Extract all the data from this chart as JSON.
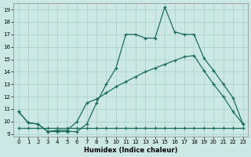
{
  "xlabel": "Humidex (Indice chaleur)",
  "bg_color": "#cce8e5",
  "grid_color": "#aacfcb",
  "line_color": "#1a6b5e",
  "xlim": [
    -0.5,
    23.5
  ],
  "ylim": [
    8.8,
    19.5
  ],
  "xticks": [
    0,
    1,
    2,
    3,
    4,
    5,
    6,
    7,
    8,
    9,
    10,
    11,
    12,
    13,
    14,
    15,
    16,
    17,
    18,
    19,
    20,
    21,
    22,
    23
  ],
  "yticks": [
    9,
    10,
    11,
    12,
    13,
    14,
    15,
    16,
    17,
    18,
    19
  ],
  "line1_x": [
    0,
    1,
    2,
    3,
    4,
    5,
    6,
    7,
    8,
    9,
    10,
    11,
    12,
    13,
    14,
    15,
    16,
    17,
    18,
    19,
    20,
    21,
    22,
    23
  ],
  "line1_y": [
    10.8,
    9.9,
    9.8,
    9.2,
    9.2,
    9.2,
    9.2,
    9.8,
    11.5,
    13.0,
    14.3,
    17.0,
    17.0,
    16.7,
    16.7,
    19.2,
    17.2,
    17.0,
    17.0,
    15.1,
    14.1,
    13.0,
    11.9,
    9.8
  ],
  "line2_x": [
    0,
    1,
    2,
    3,
    4,
    5,
    6,
    7,
    8,
    9,
    10,
    11,
    12,
    13,
    14,
    15,
    16,
    17,
    18,
    19,
    20,
    21,
    22,
    23
  ],
  "line2_y": [
    10.8,
    9.9,
    9.8,
    9.2,
    9.3,
    9.3,
    10.0,
    11.5,
    11.8,
    12.3,
    12.8,
    13.2,
    13.6,
    14.0,
    14.3,
    14.6,
    14.9,
    15.2,
    15.3,
    14.1,
    13.0,
    12.0,
    10.8,
    9.8
  ],
  "line3_x": [
    0,
    1,
    2,
    3,
    4,
    5,
    6,
    7,
    8,
    9,
    10,
    11,
    12,
    13,
    14,
    15,
    16,
    17,
    18,
    19,
    20,
    21,
    22,
    23
  ],
  "line3_y": [
    9.5,
    9.5,
    9.5,
    9.5,
    9.5,
    9.5,
    9.5,
    9.5,
    9.5,
    9.5,
    9.5,
    9.5,
    9.5,
    9.5,
    9.5,
    9.5,
    9.5,
    9.5,
    9.5,
    9.5,
    9.5,
    9.5,
    9.5,
    9.5
  ]
}
